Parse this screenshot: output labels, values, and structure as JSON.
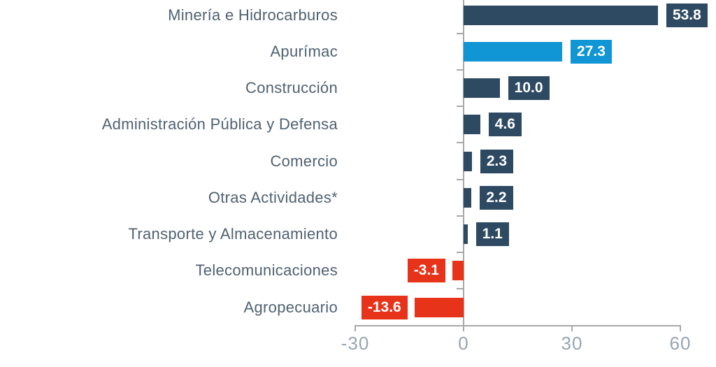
{
  "chart_data": {
    "type": "bar",
    "orientation": "horizontal",
    "title": "",
    "categories": [
      "Minería e Hidrocarburos",
      "Apurímac",
      "Construcción",
      "Administración Pública y Defensa",
      "Comercio",
      "Otras Actividades*",
      "Transporte y Almacenamiento",
      "Telecomunicaciones",
      "Agropecuario"
    ],
    "values": [
      53.8,
      27.3,
      10.0,
      4.6,
      2.3,
      2.2,
      1.1,
      -3.1,
      -13.6
    ],
    "value_labels": [
      "53.8",
      "27.3",
      "10.0",
      "4.6",
      "2.3",
      "2.2",
      "1.1",
      "-3.1",
      "-13.6"
    ],
    "bar_colors": [
      "#2e4a63",
      "#1095d5",
      "#2e4a63",
      "#2e4a63",
      "#2e4a63",
      "#2e4a63",
      "#2e4a63",
      "#e6331a",
      "#e6331a"
    ],
    "highlight_category": "Apurímac",
    "x_ticks": [
      -30,
      0,
      30,
      60
    ],
    "x_tick_labels": [
      "-30",
      "0",
      "30",
      "60"
    ],
    "xlim": [
      -30,
      60
    ],
    "grid": false,
    "legend": null,
    "colors": {
      "navy": "#2e4a63",
      "blue": "#1095d5",
      "red": "#e6331a",
      "axis": "#a8a8a8",
      "category_label": "#4f6272",
      "tick_label": "#96a5b3",
      "value_text": "#ffffff"
    }
  }
}
